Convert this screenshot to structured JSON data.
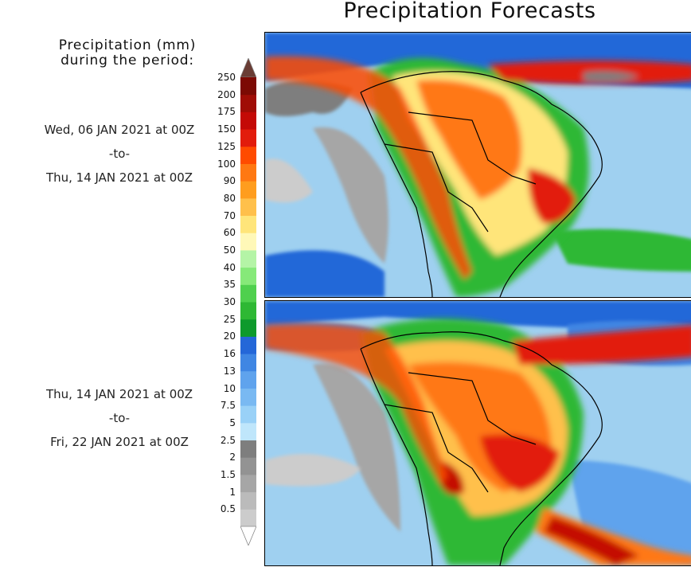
{
  "title": "Precipitation Forecasts",
  "legend": {
    "title_line1": "Precipitation (mm)",
    "title_line2": "during the period:",
    "colors": [
      "#cccccc",
      "#bbbbbb",
      "#a6a6a6",
      "#939393",
      "#7e7e7e",
      "#bfe6fb",
      "#99d1f7",
      "#79b9f2",
      "#5fa3ed",
      "#3f86e3",
      "#2467d8",
      "#0e9a2c",
      "#2eb834",
      "#4fd04e",
      "#86e979",
      "#b4f4a6",
      "#fff8b8",
      "#ffe57a",
      "#ffc04b",
      "#ff9d1e",
      "#ff7812",
      "#ff4b00",
      "#e21c0c",
      "#c40a06",
      "#a00d06",
      "#7c0a04"
    ],
    "top_arrow_color": "#6a3d35",
    "bottom_arrow_color": "#ffffff",
    "ticks": [
      "250",
      "200",
      "175",
      "150",
      "125",
      "100",
      "90",
      "80",
      "70",
      "60",
      "50",
      "40",
      "35",
      "30",
      "25",
      "20",
      "16",
      "13",
      "10",
      "7.5",
      "5",
      "2.5",
      "2",
      "1.5",
      "1",
      "0.5"
    ]
  },
  "periods": [
    {
      "start": "Wed, 06 JAN 2021 at 00Z",
      "sep": "-to-",
      "end": "Thu, 14 JAN 2021 at 00Z"
    },
    {
      "start": "Thu, 14 JAN 2021 at 00Z",
      "sep": "-to-",
      "end": "Fri, 22 JAN 2021 at 00Z"
    }
  ]
}
